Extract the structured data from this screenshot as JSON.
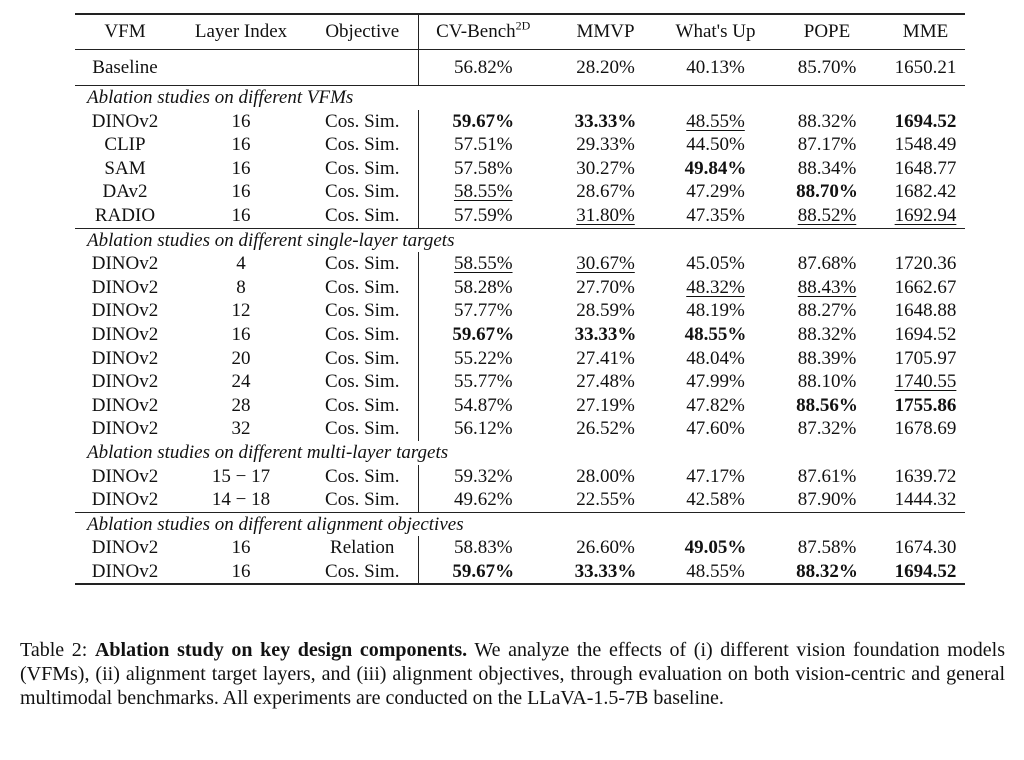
{
  "table": {
    "headers": [
      "VFM",
      "Layer Index",
      "Objective",
      "CV-Bench",
      "MMVP",
      "What's Up",
      "POPE",
      "MME"
    ],
    "cv_sup": "2D",
    "baseline": {
      "name": "Baseline",
      "values": [
        {
          "v": "56.82%"
        },
        {
          "v": "28.20%"
        },
        {
          "v": "40.13%"
        },
        {
          "v": "85.70%"
        },
        {
          "v": "1650.21"
        }
      ]
    },
    "sections": [
      {
        "title": "Ablation studies on different VFMs",
        "rule": true,
        "rows": [
          {
            "vfm": "DINOv2",
            "layer": "16",
            "obj": "Cos. Sim.",
            "values": [
              {
                "v": "59.67%",
                "b": 1
              },
              {
                "v": "33.33%",
                "b": 1
              },
              {
                "v": "48.55%",
                "u": 1
              },
              {
                "v": "88.32%"
              },
              {
                "v": "1694.52",
                "b": 1
              }
            ]
          },
          {
            "vfm": "CLIP",
            "layer": "16",
            "obj": "Cos. Sim.",
            "values": [
              {
                "v": "57.51%"
              },
              {
                "v": "29.33%"
              },
              {
                "v": "44.50%"
              },
              {
                "v": "87.17%"
              },
              {
                "v": "1548.49"
              }
            ]
          },
          {
            "vfm": "SAM",
            "layer": "16",
            "obj": "Cos. Sim.",
            "values": [
              {
                "v": "57.58%"
              },
              {
                "v": "30.27%"
              },
              {
                "v": "49.84%",
                "b": 1
              },
              {
                "v": "88.34%"
              },
              {
                "v": "1648.77"
              }
            ]
          },
          {
            "vfm": "DAv2",
            "layer": "16",
            "obj": "Cos. Sim.",
            "values": [
              {
                "v": "58.55%",
                "u": 1
              },
              {
                "v": "28.67%"
              },
              {
                "v": "47.29%"
              },
              {
                "v": "88.70%",
                "b": 1
              },
              {
                "v": "1682.42"
              }
            ]
          },
          {
            "vfm": "RADIO",
            "layer": "16",
            "obj": "Cos. Sim.",
            "values": [
              {
                "v": "57.59%"
              },
              {
                "v": "31.80%",
                "u": 1
              },
              {
                "v": "47.35%"
              },
              {
                "v": "88.52%",
                "u": 1
              },
              {
                "v": "1692.94",
                "u": 1
              }
            ]
          }
        ]
      },
      {
        "title": "Ablation studies on different single-layer targets",
        "rule": true,
        "rows": [
          {
            "vfm": "DINOv2",
            "layer": "4",
            "obj": "Cos. Sim.",
            "values": [
              {
                "v": "58.55%",
                "u": 1
              },
              {
                "v": "30.67%",
                "u": 1
              },
              {
                "v": "45.05%"
              },
              {
                "v": "87.68%"
              },
              {
                "v": "1720.36"
              }
            ]
          },
          {
            "vfm": "DINOv2",
            "layer": "8",
            "obj": "Cos. Sim.",
            "values": [
              {
                "v": "58.28%"
              },
              {
                "v": "27.70%"
              },
              {
                "v": "48.32%",
                "u": 1
              },
              {
                "v": "88.43%",
                "u": 1
              },
              {
                "v": "1662.67"
              }
            ]
          },
          {
            "vfm": "DINOv2",
            "layer": "12",
            "obj": "Cos. Sim.",
            "values": [
              {
                "v": "57.77%"
              },
              {
                "v": "28.59%"
              },
              {
                "v": "48.19%"
              },
              {
                "v": "88.27%"
              },
              {
                "v": "1648.88"
              }
            ]
          },
          {
            "vfm": "DINOv2",
            "layer": "16",
            "obj": "Cos. Sim.",
            "values": [
              {
                "v": "59.67%",
                "b": 1
              },
              {
                "v": "33.33%",
                "b": 1
              },
              {
                "v": "48.55%",
                "b": 1
              },
              {
                "v": "88.32%"
              },
              {
                "v": "1694.52"
              }
            ]
          },
          {
            "vfm": "DINOv2",
            "layer": "20",
            "obj": "Cos. Sim.",
            "values": [
              {
                "v": "55.22%"
              },
              {
                "v": "27.41%"
              },
              {
                "v": "48.04%"
              },
              {
                "v": "88.39%"
              },
              {
                "v": "1705.97"
              }
            ]
          },
          {
            "vfm": "DINOv2",
            "layer": "24",
            "obj": "Cos. Sim.",
            "values": [
              {
                "v": "55.77%"
              },
              {
                "v": "27.48%"
              },
              {
                "v": "47.99%"
              },
              {
                "v": "88.10%"
              },
              {
                "v": "1740.55",
                "u": 1
              }
            ]
          },
          {
            "vfm": "DINOv2",
            "layer": "28",
            "obj": "Cos. Sim.",
            "values": [
              {
                "v": "54.87%"
              },
              {
                "v": "27.19%"
              },
              {
                "v": "47.82%"
              },
              {
                "v": "88.56%",
                "b": 1
              },
              {
                "v": "1755.86",
                "b": 1
              }
            ]
          },
          {
            "vfm": "DINOv2",
            "layer": "32",
            "obj": "Cos. Sim.",
            "values": [
              {
                "v": "56.12%"
              },
              {
                "v": "26.52%"
              },
              {
                "v": "47.60%"
              },
              {
                "v": "87.32%"
              },
              {
                "v": "1678.69"
              }
            ]
          }
        ]
      },
      {
        "title": "Ablation studies on different multi-layer targets",
        "rule": false,
        "rows": [
          {
            "vfm": "DINOv2",
            "layer": "15 − 17",
            "obj": "Cos. Sim.",
            "values": [
              {
                "v": "59.32%"
              },
              {
                "v": "28.00%"
              },
              {
                "v": "47.17%"
              },
              {
                "v": "87.61%"
              },
              {
                "v": "1639.72"
              }
            ]
          },
          {
            "vfm": "DINOv2",
            "layer": "14 − 18",
            "obj": "Cos. Sim.",
            "values": [
              {
                "v": "49.62%"
              },
              {
                "v": "22.55%"
              },
              {
                "v": "42.58%"
              },
              {
                "v": "87.90%"
              },
              {
                "v": "1444.32"
              }
            ]
          }
        ]
      },
      {
        "title": "Ablation studies on different alignment objectives",
        "rule": true,
        "rows": [
          {
            "vfm": "DINOv2",
            "layer": "16",
            "obj": "Relation",
            "values": [
              {
                "v": "58.83%"
              },
              {
                "v": "26.60%"
              },
              {
                "v": "49.05%",
                "b": 1
              },
              {
                "v": "87.58%"
              },
              {
                "v": "1674.30"
              }
            ]
          },
          {
            "vfm": "DINOv2",
            "layer": "16",
            "obj": "Cos. Sim.",
            "values": [
              {
                "v": "59.67%",
                "b": 1
              },
              {
                "v": "33.33%",
                "b": 1
              },
              {
                "v": "48.55%"
              },
              {
                "v": "88.32%",
                "b": 1
              },
              {
                "v": "1694.52",
                "b": 1
              }
            ]
          }
        ]
      }
    ]
  },
  "caption": {
    "label": "Table 2:",
    "bold": "Ablation study on key design components.",
    "text": "We analyze the effects of (i) different vision foundation models (VFMs), (ii) alignment target layers, and (iii) alignment objectives, through evaluation on both vision-centric and general multimodal benchmarks. All experiments are conducted on the LLaVA-1.5-7B baseline."
  }
}
